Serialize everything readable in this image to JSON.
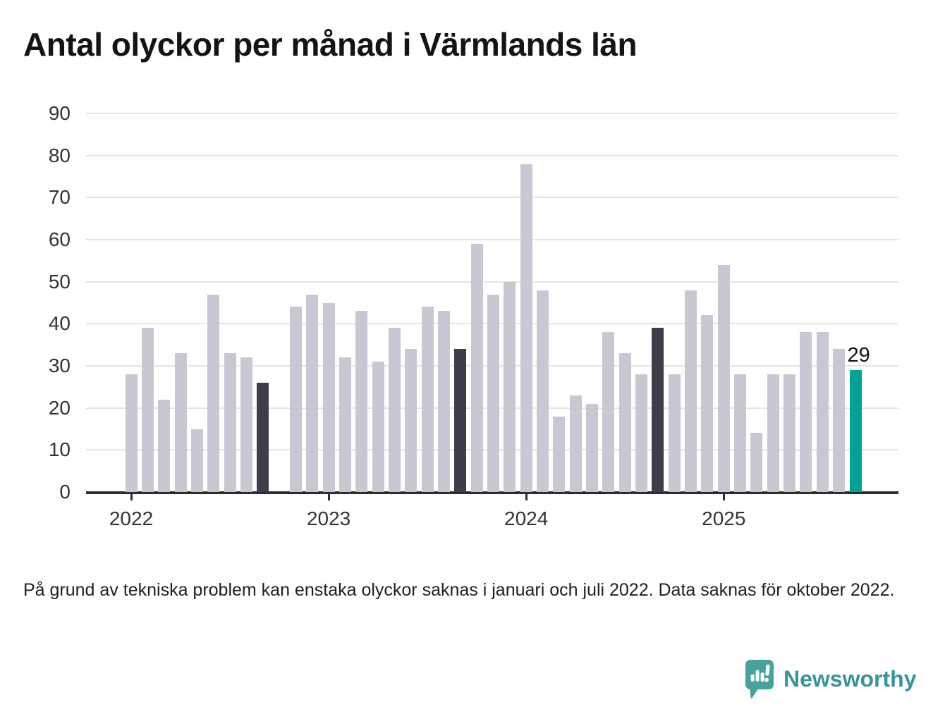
{
  "title": "Antal olyckor per månad i Värmlands län",
  "footnote": {
    "text": "På grund av tekniska problem kan enstaka olyckor saknas i januari och juli 2022. Data saknas för oktober 2022."
  },
  "logo": {
    "text": "Newsworthy",
    "icon": "newsworthy-speech-bubble-chart-icon",
    "icon_color": "#46a29b",
    "text_color": "#38949a"
  },
  "colors": {
    "bar_base": "#c9c7d2",
    "bar_highlight_dark": "#3e3d49",
    "bar_highlight_accent": "#02a296",
    "gridline": "#e5e5e7",
    "axis": "#2d2c35",
    "text": "#333333"
  },
  "chart_data": {
    "type": "bar",
    "title": "Antal olyckor per månad i Värmlands län",
    "xlabel": "",
    "ylabel": "",
    "ylim": [
      0,
      90
    ],
    "yticks": [
      0,
      10,
      20,
      30,
      40,
      50,
      60,
      70,
      80,
      90
    ],
    "year_ticks": [
      "2022",
      "2023",
      "2024",
      "2025"
    ],
    "grid": true,
    "legend_position": "none",
    "missing_months": [
      "2022-10"
    ],
    "annotation": {
      "text": "29",
      "month": "2025-09"
    },
    "points": [
      {
        "month": "2022-01",
        "value": 28,
        "role": "base"
      },
      {
        "month": "2022-02",
        "value": 39,
        "role": "base"
      },
      {
        "month": "2022-03",
        "value": 22,
        "role": "base"
      },
      {
        "month": "2022-04",
        "value": 33,
        "role": "base"
      },
      {
        "month": "2022-05",
        "value": 15,
        "role": "base"
      },
      {
        "month": "2022-06",
        "value": 47,
        "role": "base"
      },
      {
        "month": "2022-07",
        "value": 33,
        "role": "base"
      },
      {
        "month": "2022-08",
        "value": 32,
        "role": "base"
      },
      {
        "month": "2022-09",
        "value": 26,
        "role": "dark"
      },
      {
        "month": "2022-11",
        "value": 44,
        "role": "base"
      },
      {
        "month": "2022-12",
        "value": 47,
        "role": "base"
      },
      {
        "month": "2023-01",
        "value": 45,
        "role": "base"
      },
      {
        "month": "2023-02",
        "value": 32,
        "role": "base"
      },
      {
        "month": "2023-03",
        "value": 43,
        "role": "base"
      },
      {
        "month": "2023-04",
        "value": 31,
        "role": "base"
      },
      {
        "month": "2023-05",
        "value": 39,
        "role": "base"
      },
      {
        "month": "2023-06",
        "value": 34,
        "role": "base"
      },
      {
        "month": "2023-07",
        "value": 44,
        "role": "base"
      },
      {
        "month": "2023-08",
        "value": 43,
        "role": "base"
      },
      {
        "month": "2023-09",
        "value": 34,
        "role": "dark"
      },
      {
        "month": "2023-10",
        "value": 59,
        "role": "base"
      },
      {
        "month": "2023-11",
        "value": 47,
        "role": "base"
      },
      {
        "month": "2023-12",
        "value": 50,
        "role": "base"
      },
      {
        "month": "2024-01",
        "value": 78,
        "role": "base"
      },
      {
        "month": "2024-02",
        "value": 48,
        "role": "base"
      },
      {
        "month": "2024-03",
        "value": 18,
        "role": "base"
      },
      {
        "month": "2024-04",
        "value": 23,
        "role": "base"
      },
      {
        "month": "2024-05",
        "value": 21,
        "role": "base"
      },
      {
        "month": "2024-06",
        "value": 38,
        "role": "base"
      },
      {
        "month": "2024-07",
        "value": 33,
        "role": "base"
      },
      {
        "month": "2024-08",
        "value": 28,
        "role": "base"
      },
      {
        "month": "2024-09",
        "value": 39,
        "role": "dark"
      },
      {
        "month": "2024-10",
        "value": 28,
        "role": "base"
      },
      {
        "month": "2024-11",
        "value": 48,
        "role": "base"
      },
      {
        "month": "2024-12",
        "value": 42,
        "role": "base"
      },
      {
        "month": "2025-01",
        "value": 54,
        "role": "base"
      },
      {
        "month": "2025-02",
        "value": 28,
        "role": "base"
      },
      {
        "month": "2025-03",
        "value": 14,
        "role": "base"
      },
      {
        "month": "2025-04",
        "value": 28,
        "role": "base"
      },
      {
        "month": "2025-05",
        "value": 28,
        "role": "base"
      },
      {
        "month": "2025-06",
        "value": 38,
        "role": "base"
      },
      {
        "month": "2025-07",
        "value": 38,
        "role": "base"
      },
      {
        "month": "2025-08",
        "value": 34,
        "role": "accent"
      },
      {
        "month": "2025-09",
        "value": 29,
        "role": "accent"
      }
    ]
  }
}
